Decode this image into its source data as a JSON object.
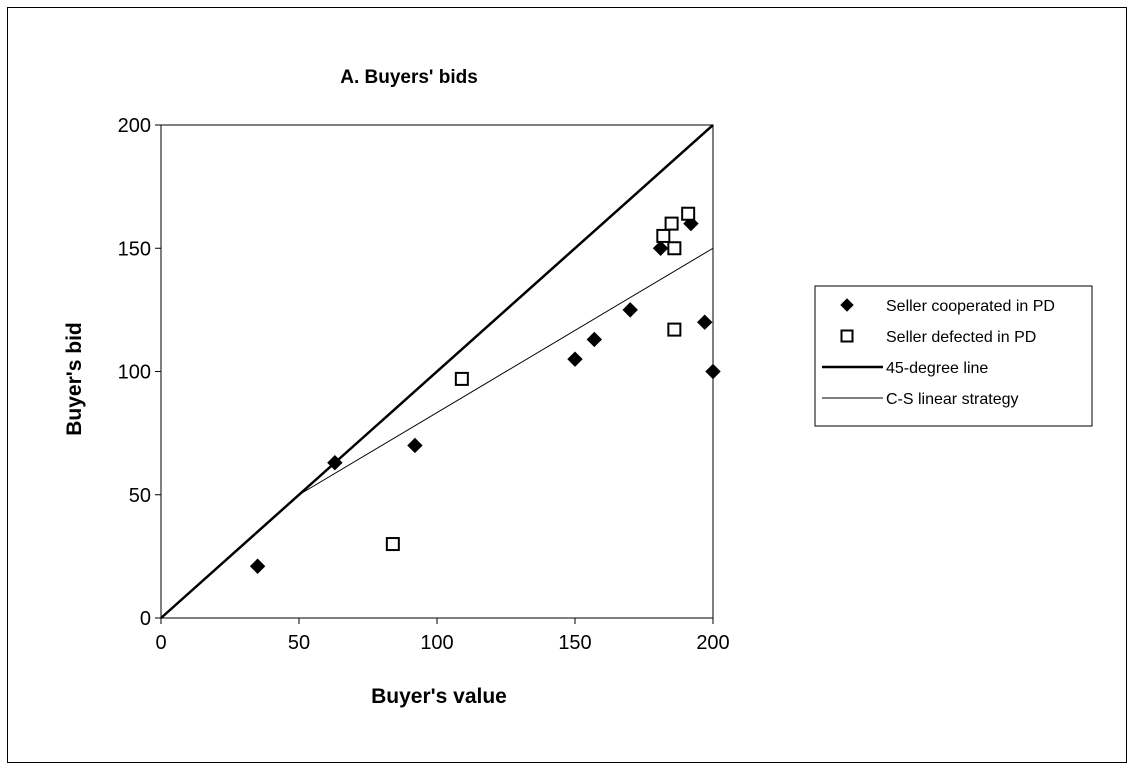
{
  "chart_data": {
    "type": "scatter",
    "title": "A. Buyers' bids",
    "xlabel": "Buyer's value",
    "ylabel": "Buyer's bid",
    "xlim": [
      0,
      200
    ],
    "ylim": [
      0,
      200
    ],
    "x_ticks": [
      "0",
      "50",
      "100",
      "150",
      "200"
    ],
    "y_ticks": [
      "0",
      "50",
      "100",
      "150",
      "200"
    ],
    "grid": false,
    "legend_position": "right",
    "series": [
      {
        "name": "Seller cooperated in PD",
        "kind": "points",
        "marker": "filled-diamond",
        "color": "#000000",
        "points": [
          {
            "x": 35,
            "y": 21
          },
          {
            "x": 63,
            "y": 63
          },
          {
            "x": 92,
            "y": 70
          },
          {
            "x": 150,
            "y": 105
          },
          {
            "x": 157,
            "y": 113
          },
          {
            "x": 170,
            "y": 125
          },
          {
            "x": 181,
            "y": 150
          },
          {
            "x": 192,
            "y": 160
          },
          {
            "x": 197,
            "y": 120
          },
          {
            "x": 200,
            "y": 100
          }
        ]
      },
      {
        "name": "Seller defected in PD",
        "kind": "points",
        "marker": "open-square",
        "color": "#000000",
        "points": [
          {
            "x": 84,
            "y": 30
          },
          {
            "x": 109,
            "y": 97
          },
          {
            "x": 182,
            "y": 155
          },
          {
            "x": 185,
            "y": 160
          },
          {
            "x": 186,
            "y": 150
          },
          {
            "x": 186,
            "y": 117
          },
          {
            "x": 191,
            "y": 164
          }
        ]
      },
      {
        "name": "45-degree line",
        "kind": "line",
        "stroke": "thick",
        "color": "#000000",
        "points": [
          {
            "x": 0,
            "y": 0
          },
          {
            "x": 200,
            "y": 200
          }
        ]
      },
      {
        "name": "C-S linear strategy",
        "kind": "line",
        "stroke": "thin",
        "color": "#000000",
        "points": [
          {
            "x": 50,
            "y": 50
          },
          {
            "x": 200,
            "y": 150
          }
        ]
      }
    ]
  }
}
